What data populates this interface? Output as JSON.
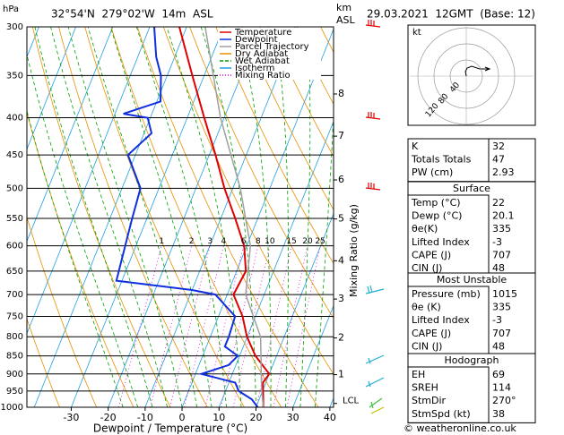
{
  "chart_data": {
    "type": "skewt",
    "location": "32°54'N  279°02'W  14m  ASL",
    "date": "29.03.2021  12GMT  (Base: 12)",
    "y_unit": "hPa",
    "height_unit": "km",
    "height_unit2": "ASL",
    "x_label": "Dewpoint / Temperature (°C)",
    "mixing_ratio_label": "Mixing Ratio (g/kg)",
    "xlim": [
      -42,
      41
    ],
    "xticks": [
      -30,
      -20,
      -10,
      0,
      10,
      20,
      30,
      40
    ],
    "ylim": [
      1000,
      300
    ],
    "log_y": true,
    "yticks": [
      300,
      350,
      400,
      450,
      500,
      550,
      600,
      650,
      700,
      750,
      800,
      850,
      900,
      950,
      1000
    ],
    "series": [
      {
        "name": "Temperature",
        "color": "#e00000",
        "pressure": [
          1000,
          925,
          900,
          850,
          800,
          750,
          700,
          650,
          600,
          550,
          500,
          450,
          400,
          350,
          300
        ],
        "values": [
          22,
          19.2,
          20,
          14.3,
          9.9,
          6.5,
          1.7,
          2.5,
          -0.7,
          -6.1,
          -12.3,
          -18.3,
          -25.4,
          -33.2,
          -42
        ]
      },
      {
        "name": "Dewpoint",
        "color": "#1030e0",
        "pressure": [
          1000,
          975,
          950,
          925,
          900,
          875,
          850,
          825,
          800,
          750,
          700,
          690,
          670,
          600,
          550,
          500,
          450,
          420,
          400,
          395,
          380,
          350,
          330,
          300
        ],
        "values": [
          20.5,
          18,
          13.6,
          11.7,
          1.6,
          8,
          9.5,
          5,
          5,
          4.5,
          -3.2,
          -10,
          -31.5,
          -32.9,
          -34,
          -35,
          -42,
          -38,
          -40.7,
          -47.7,
          -39,
          -41.7,
          -45,
          -48.8
        ]
      },
      {
        "name": "Parcel Trajectory",
        "color": "#a0a0a0",
        "pressure": [
          1000,
          950,
          900,
          850,
          800,
          700,
          600,
          500,
          400,
          300
        ],
        "values": [
          22,
          19.8,
          17.8,
          15.8,
          13.6,
          5,
          1,
          -8,
          -21,
          -35
        ]
      }
    ],
    "background_lines": [
      {
        "name": "Dry Adiabat",
        "color": "#e89000"
      },
      {
        "name": "Wet Adiabat",
        "color": "#00a000"
      },
      {
        "name": "Isotherm",
        "color": "#20a0e0"
      },
      {
        "name": "Mixing Ratio",
        "color": "#e000e0"
      }
    ],
    "mixing_ratios": [
      1,
      2,
      3,
      4,
      6,
      8,
      10,
      15,
      20,
      25
    ],
    "mixing_ratio_label_pressure": 600,
    "height_ticks": [
      1,
      2,
      3,
      4,
      5,
      6,
      7,
      8
    ],
    "height_tick_pressures": [
      902,
      803,
      710,
      629,
      551,
      487,
      424,
      371
    ],
    "lcl_label": "LCL",
    "lcl_pressure": 988
  },
  "hodograph": {
    "unit": "kt",
    "ring_labels": [
      40,
      80,
      120
    ]
  },
  "panels": [
    {
      "rows": [
        [
          "K",
          32
        ],
        [
          "Totals Totals",
          47
        ],
        [
          "PW (cm)",
          2.93
        ]
      ]
    },
    {
      "title": "Surface",
      "rows": [
        [
          "Temp (°C)",
          22
        ],
        [
          "Dewp (°C)",
          20.1
        ],
        [
          "θe(K)",
          335
        ],
        [
          "Lifted Index",
          -3
        ],
        [
          "CAPE (J)",
          707
        ],
        [
          "CIN (J)",
          48
        ]
      ]
    },
    {
      "title": "Most Unstable",
      "rows": [
        [
          "Pressure (mb)",
          1015
        ],
        [
          "θe (K)",
          335
        ],
        [
          "Lifted Index",
          -3
        ],
        [
          "CAPE (J)",
          707
        ],
        [
          "CIN (J)",
          48
        ]
      ]
    },
    {
      "title": "Hodograph",
      "rows": [
        [
          "EH",
          69
        ],
        [
          "SREH",
          114
        ],
        [
          "StmDir",
          "270°"
        ],
        [
          "StmSpd (kt)",
          38
        ]
      ]
    }
  ],
  "footer": "© weatheronline.co.uk"
}
